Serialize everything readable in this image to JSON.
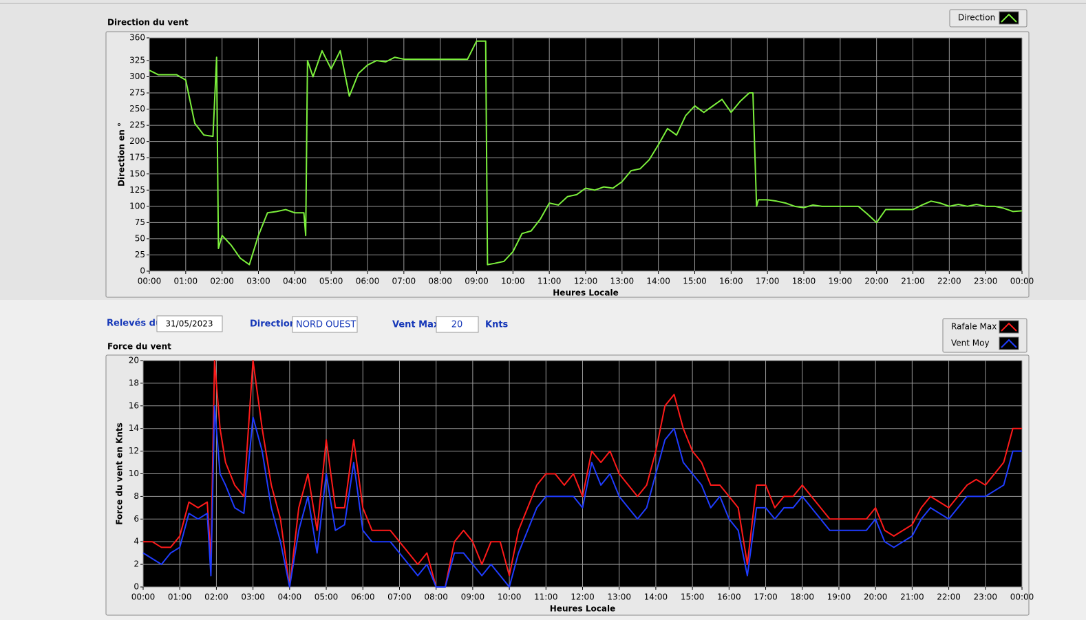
{
  "chart_data": [
    {
      "type": "line",
      "title": "Direction du vent",
      "xlabel": "Heures Locale",
      "ylabel": "Direction en °",
      "x": [
        0,
        0.25,
        0.5,
        0.75,
        1,
        1.25,
        1.5,
        1.75,
        1.85,
        1.9,
        2,
        2.25,
        2.5,
        2.75,
        3,
        3.25,
        3.5,
        3.75,
        4,
        4.25,
        4.3,
        4.35,
        4.5,
        4.75,
        5,
        5.25,
        5.5,
        5.75,
        6,
        6.25,
        6.5,
        6.75,
        7,
        7.25,
        7.5,
        7.75,
        8,
        8.25,
        8.5,
        8.75,
        9,
        9.25,
        9.3,
        9.5,
        9.75,
        10,
        10.25,
        10.5,
        10.75,
        11,
        11.25,
        11.5,
        11.75,
        12,
        12.25,
        12.5,
        12.75,
        13,
        13.25,
        13.5,
        13.75,
        14,
        14.25,
        14.5,
        14.75,
        15,
        15.25,
        15.5,
        15.75,
        16,
        16.25,
        16.5,
        16.6,
        16.7,
        16.75,
        17,
        17.25,
        17.5,
        17.75,
        18,
        18.25,
        18.5,
        18.75,
        19,
        19.25,
        19.5,
        19.75,
        20,
        20.25,
        20.5,
        20.75,
        21,
        21.25,
        21.5,
        21.75,
        22,
        22.25,
        22.5,
        22.75,
        23,
        23.25,
        23.5,
        23.75,
        24
      ],
      "series": [
        {
          "name": "Direction",
          "color": "#7cf03c",
          "values": [
            310,
            303,
            303,
            303,
            295,
            228,
            210,
            208,
            330,
            35,
            55,
            40,
            20,
            10,
            55,
            90,
            92,
            95,
            90,
            90,
            55,
            325,
            300,
            340,
            312,
            340,
            270,
            305,
            318,
            325,
            323,
            330,
            327,
            327,
            327,
            327,
            327,
            327,
            327,
            327,
            355,
            355,
            10,
            12,
            15,
            30,
            58,
            62,
            80,
            105,
            102,
            115,
            118,
            128,
            125,
            130,
            128,
            138,
            155,
            158,
            172,
            195,
            220,
            210,
            240,
            255,
            245,
            255,
            265,
            245,
            262,
            275,
            275,
            100,
            110,
            110,
            108,
            105,
            100,
            98,
            102,
            100,
            100,
            100,
            100,
            100,
            88,
            75,
            95,
            95,
            95,
            95,
            102,
            108,
            105,
            100,
            103,
            100,
            103,
            100,
            100,
            97,
            92,
            93
          ]
        }
      ],
      "xlim": [
        0,
        24
      ],
      "xticks": [
        {
          "value": 0,
          "label": "00:00"
        },
        {
          "value": 1,
          "label": "01:00"
        },
        {
          "value": 2,
          "label": "02:00"
        },
        {
          "value": 3,
          "label": "03:00"
        },
        {
          "value": 4,
          "label": "04:00"
        },
        {
          "value": 5,
          "label": "05:00"
        },
        {
          "value": 6,
          "label": "06:00"
        },
        {
          "value": 7,
          "label": "07:00"
        },
        {
          "value": 8,
          "label": "08:00"
        },
        {
          "value": 9,
          "label": "09:00"
        },
        {
          "value": 10,
          "label": "10:00"
        },
        {
          "value": 11,
          "label": "11:00"
        },
        {
          "value": 12,
          "label": "12:00"
        },
        {
          "value": 13,
          "label": "13:00"
        },
        {
          "value": 14,
          "label": "14:00"
        },
        {
          "value": 15,
          "label": "15:00"
        },
        {
          "value": 16,
          "label": "16:00"
        },
        {
          "value": 17,
          "label": "17:00"
        },
        {
          "value": 18,
          "label": "18:00"
        },
        {
          "value": 19,
          "label": "19:00"
        },
        {
          "value": 20,
          "label": "20:00"
        },
        {
          "value": 21,
          "label": "21:00"
        },
        {
          "value": 22,
          "label": "22:00"
        },
        {
          "value": 23,
          "label": "23:00"
        },
        {
          "value": 24,
          "label": "00:00"
        }
      ],
      "ylim": [
        0,
        360
      ],
      "yticks": [
        0,
        25,
        50,
        75,
        100,
        125,
        150,
        175,
        200,
        225,
        250,
        275,
        300,
        325,
        360
      ],
      "grid": true
    },
    {
      "type": "line",
      "title": "Force du vent",
      "xlabel": "Heures Locale",
      "ylabel": "Force du vent en Knts",
      "x": [
        0,
        0.25,
        0.5,
        0.75,
        1,
        1.25,
        1.5,
        1.75,
        1.85,
        1.95,
        2.1,
        2.25,
        2.5,
        2.75,
        3,
        3.25,
        3.5,
        3.75,
        4,
        4.25,
        4.5,
        4.75,
        5,
        5.25,
        5.5,
        5.75,
        6,
        6.25,
        6.5,
        6.75,
        7,
        7.25,
        7.5,
        7.75,
        8,
        8.25,
        8.5,
        8.75,
        9,
        9.25,
        9.5,
        9.75,
        10,
        10.25,
        10.5,
        10.75,
        11,
        11.25,
        11.5,
        11.75,
        12,
        12.25,
        12.5,
        12.75,
        13,
        13.25,
        13.5,
        13.75,
        14,
        14.25,
        14.5,
        14.75,
        15,
        15.25,
        15.5,
        15.75,
        16,
        16.25,
        16.5,
        16.75,
        17,
        17.25,
        17.5,
        17.75,
        18,
        18.25,
        18.5,
        18.75,
        19,
        19.25,
        19.5,
        19.75,
        20,
        20.25,
        20.5,
        20.75,
        21,
        21.25,
        21.5,
        21.75,
        22,
        22.25,
        22.5,
        22.75,
        23,
        23.25,
        23.5,
        23.75,
        24
      ],
      "series": [
        {
          "name": "Rafale Max",
          "color": "#ff1a1a",
          "values": [
            4,
            4,
            3.5,
            3.5,
            4.5,
            7.5,
            7,
            7.5,
            2.5,
            20,
            14,
            11,
            9,
            8,
            20,
            14,
            9,
            6,
            0,
            7,
            10,
            5,
            13,
            7,
            7,
            13,
            7,
            5,
            5,
            5,
            4,
            3,
            2,
            3,
            0,
            0,
            4,
            5,
            4,
            2,
            4,
            4,
            1,
            5,
            7,
            9,
            10,
            10,
            9,
            10,
            8,
            12,
            11,
            12,
            10,
            9,
            8,
            9,
            12,
            16,
            17,
            14,
            12,
            11,
            9,
            9,
            8,
            7,
            2,
            9,
            9,
            7,
            8,
            8,
            9,
            8,
            7,
            6,
            6,
            6,
            6,
            6,
            7,
            5,
            4.5,
            5,
            5.5,
            7,
            8,
            7.5,
            7,
            8,
            9,
            9.5,
            9,
            10,
            11,
            14,
            14
          ]
        },
        {
          "name": "Vent Moy",
          "color": "#1f3cff",
          "values": [
            3,
            2.5,
            2,
            3,
            3.5,
            6.5,
            6,
            6.5,
            1,
            16,
            10,
            9,
            7,
            6.5,
            15,
            12,
            7,
            4,
            0,
            5,
            8,
            3,
            10,
            5,
            5.5,
            11,
            5,
            4,
            4,
            4,
            3,
            2,
            1,
            2,
            0,
            0,
            3,
            3,
            2,
            1,
            2,
            1,
            0,
            3,
            5,
            7,
            8,
            8,
            8,
            8,
            7,
            11,
            9,
            10,
            8,
            7,
            6,
            7,
            10,
            13,
            14,
            11,
            10,
            9,
            7,
            8,
            6,
            5,
            1,
            7,
            7,
            6,
            7,
            7,
            8,
            7,
            6,
            5,
            5,
            5,
            5,
            5,
            6,
            4,
            3.5,
            4,
            4.5,
            6,
            7,
            6.5,
            6,
            7,
            8,
            8,
            8,
            8.5,
            9,
            12,
            12
          ]
        }
      ],
      "xlim": [
        0,
        24
      ],
      "xticks": [
        {
          "value": 0,
          "label": "00:00"
        },
        {
          "value": 1,
          "label": "01:00"
        },
        {
          "value": 2,
          "label": "02:00"
        },
        {
          "value": 3,
          "label": "03:00"
        },
        {
          "value": 4,
          "label": "04:00"
        },
        {
          "value": 5,
          "label": "05:00"
        },
        {
          "value": 6,
          "label": "06:00"
        },
        {
          "value": 7,
          "label": "07:00"
        },
        {
          "value": 8,
          "label": "08:00"
        },
        {
          "value": 9,
          "label": "09:00"
        },
        {
          "value": 10,
          "label": "10:00"
        },
        {
          "value": 11,
          "label": "11:00"
        },
        {
          "value": 12,
          "label": "12:00"
        },
        {
          "value": 13,
          "label": "13:00"
        },
        {
          "value": 14,
          "label": "14:00"
        },
        {
          "value": 15,
          "label": "15:00"
        },
        {
          "value": 16,
          "label": "16:00"
        },
        {
          "value": 17,
          "label": "17:00"
        },
        {
          "value": 18,
          "label": "18:00"
        },
        {
          "value": 19,
          "label": "19:00"
        },
        {
          "value": 20,
          "label": "20:00"
        },
        {
          "value": 21,
          "label": "21:00"
        },
        {
          "value": 22,
          "label": "22:00"
        },
        {
          "value": 23,
          "label": "23:00"
        },
        {
          "value": 24,
          "label": "00:00"
        }
      ],
      "ylim": [
        0,
        20
      ],
      "yticks": [
        0,
        2,
        4,
        6,
        8,
        10,
        12,
        14,
        16,
        18,
        20
      ],
      "grid": true
    }
  ],
  "controls": {
    "date_label": "Relevés du",
    "date": "31/05/2023",
    "direction_label": "Direction",
    "direction": "NORD OUEST",
    "vent_max_label": "Vent Max",
    "vent_max": 20,
    "unit": "Knts"
  }
}
